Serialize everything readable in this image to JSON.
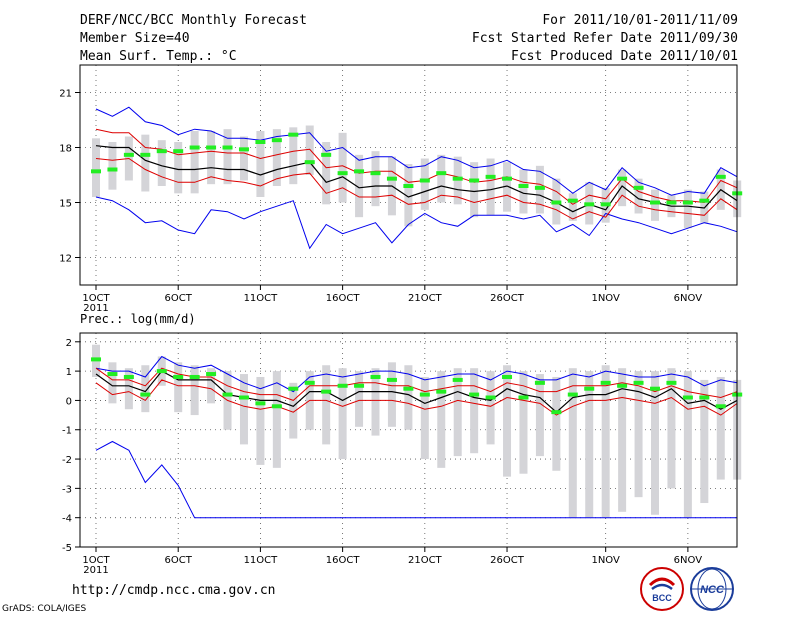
{
  "header": {
    "title": "DERF/NCC/BCC Monthly Forecast",
    "member_size": "Member Size=40",
    "variable": "Mean Surf. Temp.: °C",
    "period": "For 2011/10/01-2011/11/09",
    "started": "Fcst Started Refer Date 2011/09/30",
    "produced": "Fcst Produced Date 2011/10/01"
  },
  "footer": {
    "url": "http://cmdp.ncc.cma.gov.cn",
    "credit": "GrADS: COLA/IGES",
    "logo_left_text": "BCC",
    "logo_right_text": "NCC"
  },
  "colors": {
    "range": "#0000ee",
    "band": "#dd0000",
    "mean": "#000000",
    "box": "#d4d4d8",
    "median": "#22ee22",
    "grid": "#555555"
  },
  "chart_data": [
    {
      "type": "box",
      "title": "Mean Surf. Temp.: °C",
      "x_ticks": [
        "1OCT",
        "6OCT",
        "11OCT",
        "16OCT",
        "21OCT",
        "26OCT",
        "1NOV",
        "6NOV"
      ],
      "x_tick_days": [
        1,
        6,
        11,
        16,
        21,
        26,
        32,
        37
      ],
      "x_year_label": "2011",
      "days": 40,
      "ylim": [
        10.5,
        22.5
      ],
      "yticks": [
        12,
        15,
        18,
        21
      ],
      "max": [
        20.1,
        19.7,
        20.2,
        19.4,
        19.2,
        18.7,
        19.0,
        18.9,
        18.5,
        18.5,
        18.4,
        18.6,
        18.7,
        18.8,
        17.8,
        18.0,
        17.3,
        17.5,
        17.5,
        16.9,
        17.0,
        17.5,
        17.3,
        16.9,
        17.0,
        17.3,
        16.8,
        16.7,
        16.2,
        15.5,
        16.1,
        15.7,
        16.9,
        16.1,
        15.8,
        15.4,
        15.6,
        15.5,
        16.9,
        16.4
      ],
      "p75": [
        19.0,
        18.8,
        18.8,
        18.0,
        17.9,
        17.6,
        17.7,
        17.8,
        17.7,
        17.7,
        17.4,
        17.6,
        17.8,
        17.9,
        16.9,
        17.0,
        16.6,
        16.7,
        16.7,
        16.1,
        16.2,
        16.6,
        16.4,
        16.1,
        16.2,
        16.4,
        16.1,
        16.0,
        15.6,
        14.9,
        15.4,
        15.2,
        16.3,
        15.6,
        15.3,
        15.1,
        15.1,
        15.0,
        16.2,
        15.8
      ],
      "mean": [
        18.1,
        18.0,
        18.0,
        17.3,
        17.0,
        16.8,
        16.8,
        16.9,
        16.8,
        16.8,
        16.5,
        16.8,
        17.0,
        17.2,
        16.1,
        16.4,
        15.8,
        15.9,
        15.9,
        15.3,
        15.6,
        15.9,
        15.7,
        15.6,
        15.7,
        15.9,
        15.5,
        15.4,
        15.0,
        14.5,
        14.9,
        14.6,
        15.9,
        15.2,
        15.0,
        14.8,
        14.8,
        14.7,
        15.7,
        15.1
      ],
      "p25": [
        17.4,
        17.3,
        17.4,
        16.8,
        16.4,
        16.1,
        16.1,
        16.4,
        16.2,
        16.1,
        15.9,
        16.3,
        16.5,
        16.6,
        15.5,
        15.8,
        15.3,
        15.3,
        15.4,
        14.9,
        15.0,
        15.4,
        15.3,
        15.0,
        15.2,
        15.4,
        15.0,
        14.9,
        14.6,
        14.1,
        14.5,
        14.2,
        15.4,
        14.8,
        14.6,
        14.5,
        14.4,
        14.3,
        15.2,
        14.6
      ],
      "min": [
        15.3,
        15.1,
        14.6,
        13.9,
        14.0,
        13.5,
        13.3,
        14.6,
        14.5,
        14.1,
        14.5,
        14.8,
        15.1,
        12.5,
        13.8,
        13.3,
        13.6,
        13.9,
        12.8,
        13.8,
        14.4,
        13.9,
        13.7,
        14.3,
        14.3,
        14.3,
        14.1,
        14.3,
        13.4,
        13.8,
        13.2,
        14.4,
        14.1,
        13.9,
        13.6,
        13.3,
        13.6,
        13.9,
        13.7,
        13.4
      ],
      "box_high": [
        18.5,
        18.3,
        18.6,
        18.7,
        18.4,
        18.3,
        18.9,
        18.9,
        19.0,
        18.6,
        18.9,
        19.0,
        19.1,
        19.2,
        18.3,
        18.8,
        17.6,
        17.8,
        17.5,
        17.1,
        17.4,
        17.6,
        17.5,
        17.2,
        17.4,
        17.2,
        16.8,
        17.0,
        16.3,
        15.5,
        16.1,
        15.8,
        16.8,
        16.3,
        15.7,
        15.4,
        15.7,
        15.6,
        16.8,
        16.2
      ],
      "box_low": [
        15.3,
        15.7,
        16.2,
        15.6,
        15.9,
        15.5,
        15.5,
        16.0,
        16.0,
        16.2,
        15.3,
        15.9,
        16.0,
        16.5,
        14.9,
        15.0,
        14.2,
        14.8,
        14.3,
        13.7,
        14.6,
        15.0,
        14.9,
        14.2,
        14.3,
        14.5,
        14.4,
        14.4,
        13.8,
        14.0,
        13.8,
        13.9,
        14.8,
        14.4,
        14.0,
        14.2,
        13.6,
        13.9,
        14.6,
        14.2
      ],
      "median": [
        16.7,
        16.8,
        17.6,
        17.6,
        17.8,
        17.8,
        18.0,
        18.0,
        18.0,
        17.9,
        18.3,
        18.4,
        18.7,
        17.2,
        17.6,
        16.6,
        16.7,
        16.6,
        16.3,
        15.9,
        16.2,
        16.6,
        16.3,
        16.2,
        16.4,
        16.3,
        15.9,
        15.8,
        15.0,
        15.1,
        14.9,
        14.9,
        16.3,
        15.8,
        15.0,
        15.0,
        15.0,
        15.1,
        16.4,
        15.5
      ]
    },
    {
      "type": "box",
      "title": "Prec.: log(mm/d)",
      "x_ticks": [
        "1OCT",
        "6OCT",
        "11OCT",
        "16OCT",
        "21OCT",
        "26OCT",
        "1NOV",
        "6NOV"
      ],
      "x_tick_days": [
        1,
        6,
        11,
        16,
        21,
        26,
        32,
        37
      ],
      "x_year_label": "2011",
      "days": 40,
      "ylim": [
        -5,
        2.3
      ],
      "yticks": [
        -5,
        -4,
        -3,
        -2,
        -1,
        0,
        1,
        2
      ],
      "max": [
        1.1,
        1.0,
        1.0,
        0.8,
        1.5,
        1.2,
        1.1,
        1.2,
        0.9,
        0.6,
        0.4,
        0.6,
        0.3,
        0.8,
        0.9,
        0.8,
        0.9,
        1.0,
        1.0,
        0.9,
        0.7,
        0.8,
        0.9,
        0.9,
        0.7,
        1.0,
        0.9,
        0.7,
        0.7,
        0.9,
        0.8,
        1.0,
        0.9,
        0.8,
        0.8,
        0.9,
        0.8,
        0.5,
        0.7,
        0.6
      ],
      "p75": [
        1.1,
        0.7,
        0.7,
        0.5,
        1.1,
        0.9,
        0.8,
        0.8,
        0.5,
        0.3,
        0.2,
        0.2,
        0.0,
        0.5,
        0.5,
        0.5,
        0.6,
        0.6,
        0.5,
        0.5,
        0.3,
        0.4,
        0.5,
        0.5,
        0.3,
        0.6,
        0.5,
        0.3,
        0.3,
        0.5,
        0.5,
        0.5,
        0.6,
        0.5,
        0.3,
        0.5,
        0.3,
        0.2,
        0.1,
        0.3
      ],
      "mean": [
        0.9,
        0.5,
        0.5,
        0.3,
        1.0,
        0.7,
        0.7,
        0.7,
        0.2,
        0.1,
        0.0,
        0.0,
        -0.2,
        0.3,
        0.3,
        0.0,
        0.3,
        0.3,
        0.3,
        0.2,
        -0.1,
        0.1,
        0.3,
        0.1,
        0.0,
        0.4,
        0.2,
        0.1,
        -0.4,
        0.1,
        0.2,
        0.2,
        0.4,
        0.3,
        0.1,
        0.4,
        -0.1,
        0.0,
        -0.3,
        0.0
      ],
      "p25": [
        0.6,
        0.2,
        0.3,
        0.0,
        0.7,
        0.5,
        0.5,
        0.4,
        0.0,
        -0.2,
        -0.3,
        -0.2,
        -0.4,
        0.0,
        0.0,
        -0.2,
        0.0,
        0.0,
        0.0,
        -0.1,
        -0.3,
        -0.2,
        0.0,
        -0.1,
        -0.2,
        0.1,
        0.0,
        -0.1,
        -0.5,
        -0.2,
        0.0,
        0.0,
        0.1,
        0.0,
        -0.1,
        0.1,
        -0.3,
        -0.2,
        -0.5,
        -0.1
      ],
      "min": [
        -1.7,
        -1.4,
        -1.7,
        -2.8,
        -2.2,
        -2.9,
        -4.0,
        -4.0,
        -4.0,
        -4.0,
        -4.0,
        -4.0,
        -4.0,
        -4.0,
        -4.0,
        -4.0,
        -4.0,
        -4.0,
        -4.0,
        -4.0,
        -4.0,
        -4.0,
        -4.0,
        -4.0,
        -4.0,
        -4.0,
        -4.0,
        -4.0,
        -4.0,
        -4.0,
        -4.0,
        -4.0,
        -4.0,
        -4.0,
        -4.0,
        -4.0,
        -4.0,
        -4.0,
        -4.0,
        -4.0
      ],
      "box_high": [
        1.9,
        1.3,
        1.1,
        1.2,
        1.5,
        1.3,
        1.2,
        1.1,
        1.0,
        0.9,
        0.8,
        1.0,
        0.6,
        1.0,
        1.2,
        1.1,
        1.0,
        1.1,
        1.3,
        1.2,
        0.8,
        1.0,
        1.1,
        1.1,
        1.0,
        1.2,
        1.0,
        0.9,
        0.8,
        1.1,
        1.0,
        1.2,
        1.1,
        1.0,
        1.0,
        1.1,
        1.0,
        0.7,
        0.8,
        0.7
      ],
      "box_low": [
        0.8,
        -0.1,
        -0.3,
        -0.4,
        0.5,
        -0.4,
        -0.5,
        -0.1,
        -1.0,
        -1.5,
        -2.2,
        -2.3,
        -1.3,
        -1.0,
        -1.5,
        -2.0,
        -0.9,
        -1.2,
        -0.9,
        -1.0,
        -2.0,
        -2.3,
        -1.9,
        -1.8,
        -1.5,
        -2.6,
        -2.5,
        -1.9,
        -2.4,
        -4.0,
        -4.0,
        -4.0,
        -3.8,
        -3.3,
        -3.9,
        -3.0,
        -4.0,
        -3.5,
        -2.7,
        -2.7
      ],
      "median": [
        1.4,
        0.9,
        0.8,
        0.2,
        1.0,
        0.8,
        0.8,
        0.9,
        0.2,
        0.1,
        -0.1,
        -0.2,
        0.4,
        0.6,
        0.3,
        0.5,
        0.5,
        0.8,
        0.7,
        0.4,
        0.2,
        0.3,
        0.7,
        0.2,
        0.1,
        0.8,
        0.1,
        0.6,
        -0.4,
        0.2,
        0.4,
        0.6,
        0.5,
        0.6,
        0.4,
        0.6,
        0.1,
        0.1,
        -0.2,
        0.2
      ]
    }
  ]
}
